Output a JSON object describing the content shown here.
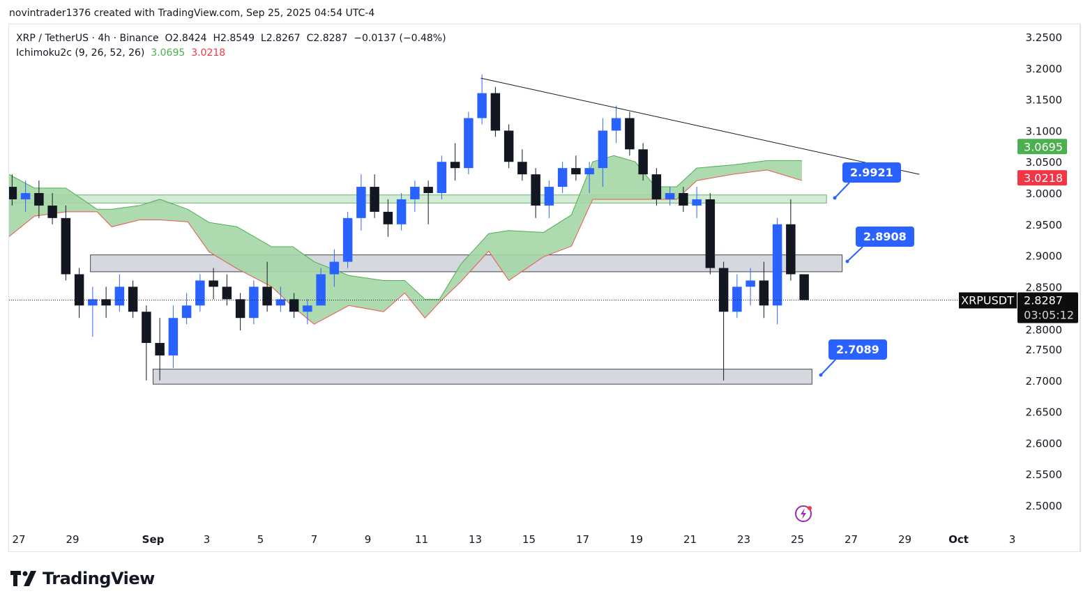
{
  "credit": "novintrader1376 created with TradingView.com, Sep 25, 2025 04:54 UTC-4",
  "legend": {
    "symbol": "XRP / TetherUS · 4h · Binance",
    "open": "O2.8424",
    "high": "H2.8549",
    "low": "L2.8267",
    "close": "C2.8287",
    "change": "−0.0137 (−0.48%)",
    "indicator": "Ichimoku2c (9, 26, 52, 26)",
    "ind_val_1": "3.0695",
    "ind_val_2": "3.0218"
  },
  "price_badges": {
    "span_a": {
      "label": "3.0695",
      "value": 3.0695,
      "color": "#4caf50"
    },
    "span_b": {
      "label": "3.0218",
      "value": 3.0218,
      "color": "#f23645"
    },
    "symbol_tag": "XRPUSDT",
    "last_price": "2.8287",
    "countdown": "03:05:12"
  },
  "callouts": [
    {
      "label": "2.9921",
      "value": 2.9921
    },
    {
      "label": "2.8908",
      "value": 2.8908
    },
    {
      "label": "2.7089",
      "value": 2.7089
    }
  ],
  "brand": "TradingView",
  "colors": {
    "up": "#2962ff",
    "down": "#131722",
    "cloud": "#a5d6a7",
    "span_a": "#4caf50",
    "span_b": "#ef5350",
    "zone_green": "#c8e6c9",
    "zone_grey": "#d1d4dc",
    "callout": "#2962ff"
  },
  "chart_data": {
    "type": "candlestick",
    "interval": "12h (approximated from 4h chart)",
    "ylim": [
      2.47,
      3.27
    ],
    "yticks": [
      "3.2500",
      "3.2000",
      "3.1500",
      "3.1000",
      "3.0500",
      "3.0000",
      "2.9500",
      "2.9000",
      "2.8500",
      "2.8000",
      "2.7500",
      "2.7000",
      "2.6500",
      "2.6000",
      "2.5500",
      "2.5000"
    ],
    "xticks": [
      {
        "label": "27",
        "date": "2025-08-27"
      },
      {
        "label": "29",
        "date": "2025-08-29"
      },
      {
        "label": "Sep",
        "date": "2025-09-01"
      },
      {
        "label": "3",
        "date": "2025-09-03"
      },
      {
        "label": "5",
        "date": "2025-09-05"
      },
      {
        "label": "7",
        "date": "2025-09-07"
      },
      {
        "label": "9",
        "date": "2025-09-09"
      },
      {
        "label": "11",
        "date": "2025-09-11"
      },
      {
        "label": "13",
        "date": "2025-09-13"
      },
      {
        "label": "15",
        "date": "2025-09-15"
      },
      {
        "label": "17",
        "date": "2025-09-17"
      },
      {
        "label": "19",
        "date": "2025-09-19"
      },
      {
        "label": "21",
        "date": "2025-09-21"
      },
      {
        "label": "23",
        "date": "2025-09-23"
      },
      {
        "label": "25",
        "date": "2025-09-25"
      },
      {
        "label": "27",
        "date": "2025-09-27"
      },
      {
        "label": "29",
        "date": "2025-09-29"
      },
      {
        "label": "Oct",
        "date": "2025-10-01"
      },
      {
        "label": "3",
        "date": "2025-10-03"
      }
    ],
    "candles": [
      [
        "2025-08-26T12",
        3.01,
        3.03,
        2.98,
        2.99
      ],
      [
        "2025-08-27T00",
        2.99,
        3.02,
        2.97,
        3.0
      ],
      [
        "2025-08-27T12",
        3.0,
        3.02,
        2.96,
        2.98
      ],
      [
        "2025-08-28T00",
        2.98,
        3.0,
        2.95,
        2.96
      ],
      [
        "2025-08-28T12",
        2.96,
        2.98,
        2.86,
        2.87
      ],
      [
        "2025-08-29T00",
        2.87,
        2.88,
        2.8,
        2.82
      ],
      [
        "2025-08-29T12",
        2.82,
        2.85,
        2.77,
        2.83
      ],
      [
        "2025-08-30T00",
        2.83,
        2.85,
        2.8,
        2.82
      ],
      [
        "2025-08-30T12",
        2.82,
        2.87,
        2.81,
        2.85
      ],
      [
        "2025-08-31T00",
        2.85,
        2.86,
        2.8,
        2.81
      ],
      [
        "2025-08-31T12",
        2.81,
        2.82,
        2.7,
        2.76
      ],
      [
        "2025-09-01T00",
        2.76,
        2.8,
        2.7,
        2.74
      ],
      [
        "2025-09-01T12",
        2.74,
        2.82,
        2.72,
        2.8
      ],
      [
        "2025-09-02T00",
        2.8,
        2.84,
        2.79,
        2.82
      ],
      [
        "2025-09-02T12",
        2.82,
        2.87,
        2.81,
        2.86
      ],
      [
        "2025-09-03T00",
        2.86,
        2.88,
        2.83,
        2.85
      ],
      [
        "2025-09-03T12",
        2.85,
        2.87,
        2.82,
        2.83
      ],
      [
        "2025-09-04T00",
        2.83,
        2.84,
        2.78,
        2.8
      ],
      [
        "2025-09-04T12",
        2.8,
        2.86,
        2.79,
        2.85
      ],
      [
        "2025-09-05T00",
        2.85,
        2.89,
        2.81,
        2.82
      ],
      [
        "2025-09-05T12",
        2.82,
        2.85,
        2.81,
        2.83
      ],
      [
        "2025-09-06T00",
        2.83,
        2.84,
        2.8,
        2.81
      ],
      [
        "2025-09-06T12",
        2.81,
        2.83,
        2.79,
        2.82
      ],
      [
        "2025-09-07T00",
        2.82,
        2.88,
        2.82,
        2.87
      ],
      [
        "2025-09-07T12",
        2.87,
        2.91,
        2.85,
        2.89
      ],
      [
        "2025-09-08T00",
        2.89,
        2.97,
        2.88,
        2.96
      ],
      [
        "2025-09-08T12",
        2.96,
        3.03,
        2.94,
        3.01
      ],
      [
        "2025-09-09T00",
        3.01,
        3.03,
        2.96,
        2.97
      ],
      [
        "2025-09-09T12",
        2.97,
        2.99,
        2.93,
        2.95
      ],
      [
        "2025-09-10T00",
        2.95,
        3.0,
        2.94,
        2.99
      ],
      [
        "2025-09-10T12",
        2.99,
        3.02,
        2.97,
        3.01
      ],
      [
        "2025-09-11T00",
        3.01,
        3.02,
        2.95,
        3.0
      ],
      [
        "2025-09-11T12",
        3.0,
        3.06,
        2.99,
        3.05
      ],
      [
        "2025-09-12T00",
        3.05,
        3.08,
        3.02,
        3.04
      ],
      [
        "2025-09-12T12",
        3.04,
        3.13,
        3.03,
        3.12
      ],
      [
        "2025-09-13T00",
        3.12,
        3.19,
        3.11,
        3.16
      ],
      [
        "2025-09-13T12",
        3.16,
        3.17,
        3.09,
        3.1
      ],
      [
        "2025-09-14T00",
        3.1,
        3.11,
        3.04,
        3.05
      ],
      [
        "2025-09-14T12",
        3.05,
        3.07,
        3.02,
        3.03
      ],
      [
        "2025-09-15T00",
        3.03,
        3.04,
        2.96,
        2.98
      ],
      [
        "2025-09-15T12",
        2.98,
        3.02,
        2.96,
        3.01
      ],
      [
        "2025-09-16T00",
        3.01,
        3.05,
        3.0,
        3.04
      ],
      [
        "2025-09-16T12",
        3.04,
        3.06,
        3.02,
        3.03
      ],
      [
        "2025-09-17T00",
        3.03,
        3.05,
        3.0,
        3.04
      ],
      [
        "2025-09-17T12",
        3.04,
        3.12,
        3.01,
        3.1
      ],
      [
        "2025-09-18T00",
        3.1,
        3.14,
        3.08,
        3.12
      ],
      [
        "2025-09-18T12",
        3.12,
        3.13,
        3.06,
        3.07
      ],
      [
        "2025-09-19T00",
        3.07,
        3.08,
        3.02,
        3.03
      ],
      [
        "2025-09-19T12",
        3.03,
        3.04,
        2.98,
        2.99
      ],
      [
        "2025-09-20T00",
        2.99,
        3.01,
        2.98,
        3.0
      ],
      [
        "2025-09-20T12",
        3.0,
        3.01,
        2.97,
        2.98
      ],
      [
        "2025-09-21T00",
        2.98,
        3.01,
        2.96,
        2.99
      ],
      [
        "2025-09-21T12",
        2.99,
        3.0,
        2.87,
        2.88
      ],
      [
        "2025-09-22T00",
        2.88,
        2.89,
        2.7,
        2.81
      ],
      [
        "2025-09-22T12",
        2.81,
        2.87,
        2.8,
        2.85
      ],
      [
        "2025-09-23T00",
        2.85,
        2.88,
        2.82,
        2.86
      ],
      [
        "2025-09-23T12",
        2.86,
        2.89,
        2.8,
        2.82
      ],
      [
        "2025-09-24T00",
        2.82,
        2.96,
        2.79,
        2.95
      ],
      [
        "2025-09-24T12",
        2.95,
        2.99,
        2.86,
        2.87
      ],
      [
        "2025-09-25T00",
        2.87,
        2.87,
        2.83,
        2.8287
      ]
    ],
    "cloud": [
      [
        "2025-08-26T15",
        3.03,
        2.93
      ],
      [
        "2025-08-27T14",
        3.008,
        2.963
      ],
      [
        "2025-08-28T18",
        3.008,
        2.97
      ],
      [
        "2025-08-29T22",
        2.974,
        2.97
      ],
      [
        "2025-08-30T11",
        2.974,
        2.946
      ],
      [
        "2025-08-31T12",
        2.98,
        2.957
      ],
      [
        "2025-09-01T06",
        2.99,
        2.957
      ],
      [
        "2025-09-02T07",
        2.974,
        2.954
      ],
      [
        "2025-09-03T02",
        2.953,
        2.906
      ],
      [
        "2025-09-04T03",
        2.946,
        2.879
      ],
      [
        "2025-09-05T10",
        2.914,
        2.85
      ],
      [
        "2025-09-06T05",
        2.914,
        2.818
      ],
      [
        "2025-09-07T00",
        2.89,
        2.79
      ],
      [
        "2025-09-08T07",
        2.868,
        2.82
      ],
      [
        "2025-09-09T14",
        2.86,
        2.81
      ],
      [
        "2025-09-10T09",
        2.86,
        2.84
      ],
      [
        "2025-09-11T03",
        2.83,
        2.8
      ],
      [
        "2025-09-11T16",
        2.83,
        2.825
      ],
      [
        "2025-09-12T11",
        2.886,
        2.858
      ],
      [
        "2025-09-13T12",
        2.935,
        2.907
      ],
      [
        "2025-09-14T06",
        2.94,
        2.86
      ],
      [
        "2025-09-15T13",
        2.937,
        2.898
      ],
      [
        "2025-09-16T14",
        2.965,
        2.915
      ],
      [
        "2025-09-17T09",
        3.05,
        2.99
      ],
      [
        "2025-09-18T04",
        3.06,
        2.99
      ],
      [
        "2025-09-18T23",
        3.05,
        2.99
      ],
      [
        "2025-09-19T17",
        3.01,
        2.99
      ],
      [
        "2025-09-20T12",
        3.01,
        2.99
      ],
      [
        "2025-09-21T06",
        3.04,
        3.02
      ],
      [
        "2025-09-22T14",
        3.045,
        3.03
      ],
      [
        "2025-09-23T21",
        3.052,
        3.037
      ],
      [
        "2025-09-25T04",
        3.052,
        3.02
      ]
    ],
    "zones": [
      {
        "kind": "green",
        "top": 2.997,
        "bottom": 2.984,
        "from": "2025-08-26T14",
        "to": "2025-09-26T02"
      },
      {
        "kind": "grey",
        "top": 2.901,
        "bottom": 2.874,
        "from": "2025-08-29T16",
        "to": "2025-09-26T16"
      },
      {
        "kind": "grey",
        "top": 2.718,
        "bottom": 2.694,
        "from": "2025-09-01T00",
        "to": "2025-09-25T13"
      }
    ],
    "trendline": {
      "from": [
        "2025-09-13T05",
        3.184
      ],
      "to": [
        "2025-09-29T13",
        3.03
      ]
    },
    "last_price": 2.8287
  }
}
